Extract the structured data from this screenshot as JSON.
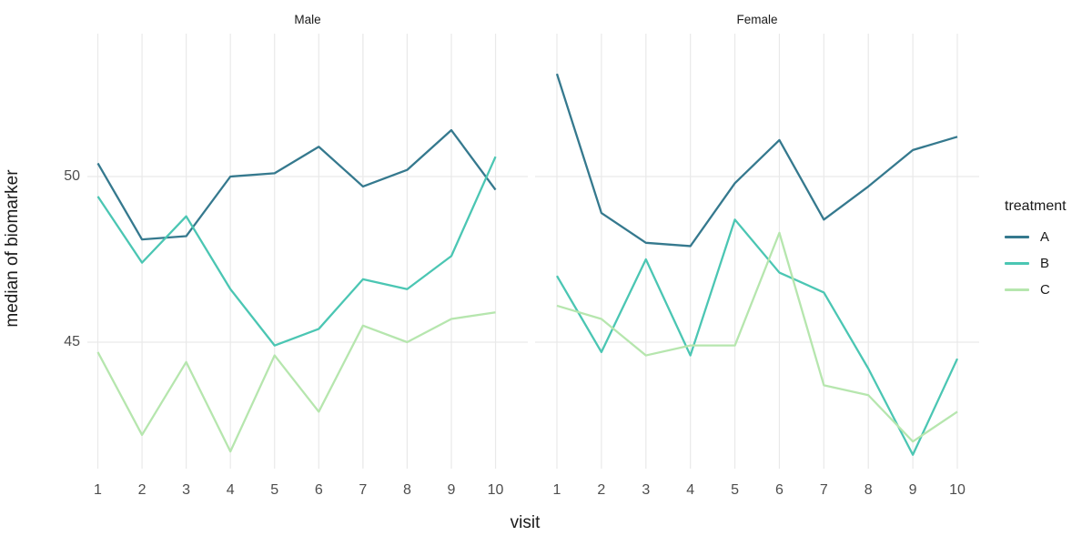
{
  "chart_data": {
    "type": "line",
    "title": "",
    "xlabel": "visit",
    "ylabel": "median of biomarker",
    "x": [
      1,
      2,
      3,
      4,
      5,
      6,
      7,
      8,
      9,
      10
    ],
    "x_tick_labels": [
      "1",
      "2",
      "3",
      "4",
      "5",
      "6",
      "7",
      "8",
      "9",
      "10"
    ],
    "y_ticks": [
      45,
      50
    ],
    "y_tick_labels": [
      "45",
      "50"
    ],
    "ylim": [
      41.0,
      54.3
    ],
    "grid": true,
    "legend": {
      "title": "treatment",
      "position": "right",
      "entries": [
        "A",
        "B",
        "C"
      ]
    },
    "colors": {
      "A": "#35798E",
      "B": "#4BC6B3",
      "C": "#B6E6AE",
      "gridline": "#E9E9E9",
      "tick_text": "#4D4D4D",
      "title_text": "#1A1A1A"
    },
    "facets": [
      {
        "label": "Male",
        "series": [
          {
            "name": "A",
            "color": "#35798E",
            "values": [
              50.4,
              48.1,
              48.2,
              50.0,
              50.1,
              50.9,
              49.7,
              50.2,
              51.4,
              49.6
            ]
          },
          {
            "name": "B",
            "color": "#4BC6B3",
            "values": [
              49.4,
              47.4,
              48.8,
              46.6,
              44.9,
              45.4,
              46.9,
              46.6,
              47.6,
              50.6
            ]
          },
          {
            "name": "C",
            "color": "#B6E6AE",
            "values": [
              44.7,
              42.2,
              44.4,
              41.7,
              44.6,
              42.9,
              45.5,
              45.0,
              45.7,
              45.9
            ]
          }
        ]
      },
      {
        "label": "Female",
        "series": [
          {
            "name": "A",
            "color": "#35798E",
            "values": [
              53.1,
              48.9,
              48.0,
              47.9,
              49.8,
              51.1,
              48.7,
              49.7,
              50.8,
              51.2
            ]
          },
          {
            "name": "B",
            "color": "#4BC6B3",
            "values": [
              47.0,
              44.7,
              47.5,
              44.6,
              48.7,
              47.1,
              46.5,
              44.2,
              41.6,
              44.5
            ]
          },
          {
            "name": "C",
            "color": "#B6E6AE",
            "values": [
              46.1,
              45.7,
              44.6,
              44.9,
              44.9,
              48.3,
              43.7,
              43.4,
              42.0,
              42.9
            ]
          }
        ]
      }
    ]
  }
}
